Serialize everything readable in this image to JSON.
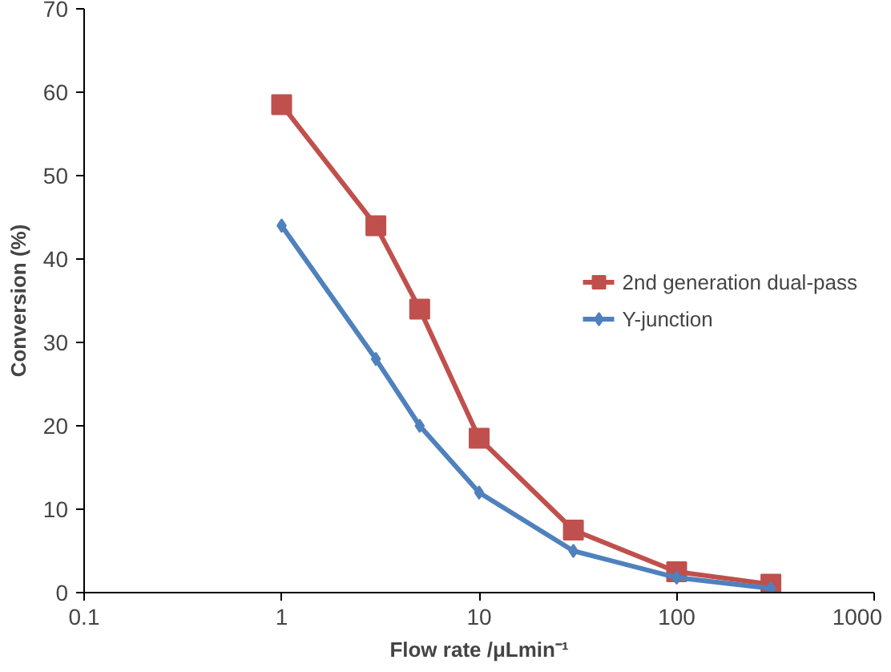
{
  "chart_data": {
    "type": "line",
    "xlabel": "Flow rate /μLmin⁻¹",
    "ylabel": "Conversion (%)",
    "log": "x",
    "xlim": [
      0.1,
      1000
    ],
    "xticks": [
      0.1,
      1,
      10,
      100,
      1000
    ],
    "ylim": [
      0,
      70
    ],
    "yticks": [
      0,
      10,
      20,
      30,
      40,
      50,
      60,
      70
    ],
    "grid": false,
    "legend": "right",
    "x": [
      1,
      3,
      5,
      10,
      30,
      100,
      300
    ],
    "series": [
      {
        "name": "2nd generation dual-pass",
        "color": "#c0504d",
        "marker": "square",
        "values": [
          58.5,
          44,
          34,
          18.5,
          7.5,
          2.5,
          1
        ]
      },
      {
        "name": "Y-junction",
        "color": "#4f81bd",
        "marker": "diamond",
        "values": [
          44,
          28,
          20,
          12,
          5,
          1.8,
          0.5
        ]
      }
    ]
  }
}
